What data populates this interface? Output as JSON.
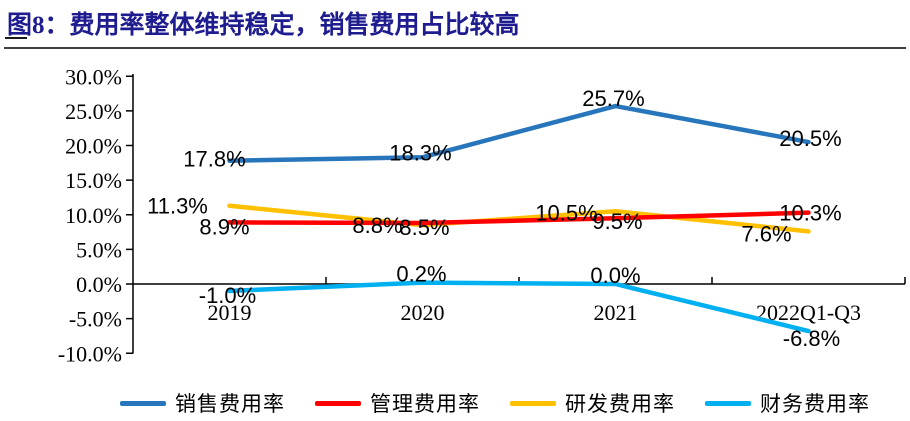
{
  "header": {
    "title": "图8：费用率整体维持稳定，销售费用占比较高",
    "title_color": "#1E1C8F"
  },
  "chart_data": {
    "type": "line",
    "title": "图8：费用率整体维持稳定，销售费用占比较高",
    "categories": [
      "2019",
      "2020",
      "2021",
      "2022Q1-Q3"
    ],
    "series": [
      {
        "name": "销售费用率",
        "key": "sales-expense-ratio",
        "color": "#2776BC",
        "values": [
          17.8,
          18.3,
          25.7,
          20.5
        ],
        "labels": [
          "17.8%",
          "18.3%",
          "25.7%",
          "20.5%"
        ]
      },
      {
        "name": "管理费用率",
        "key": "management-expense-ratio",
        "color": "#FE0000",
        "values": [
          8.9,
          8.8,
          9.5,
          10.3
        ],
        "labels": [
          "8.9%",
          "8.8%",
          "9.5%",
          "10.3%"
        ]
      },
      {
        "name": "研发费用率",
        "key": "rd-expense-ratio",
        "color": "#FFC000",
        "values": [
          11.3,
          8.5,
          10.5,
          7.6
        ],
        "labels": [
          "11.3%",
          "8.5%",
          "10.5%",
          "7.6%"
        ]
      },
      {
        "name": "财务费用率",
        "key": "finance-expense-ratio",
        "color": "#00B0F0",
        "values": [
          -1.0,
          0.2,
          0.0,
          -6.8
        ],
        "labels": [
          "-1.0%",
          "0.2%",
          "0.0%",
          "-6.8%"
        ]
      }
    ],
    "y_ticks": [
      "30.0%",
      "25.0%",
      "20.0%",
      "15.0%",
      "10.0%",
      "5.0%",
      "0.0%",
      "-5.0%",
      "-10.0%"
    ],
    "y_tick_values": [
      30,
      25,
      20,
      15,
      10,
      5,
      0,
      -5,
      -10
    ],
    "ylim": [
      -10,
      30
    ],
    "xlabel": "",
    "ylabel": "",
    "grid": false,
    "legend_position": "bottom",
    "axis_color": "#000000"
  }
}
